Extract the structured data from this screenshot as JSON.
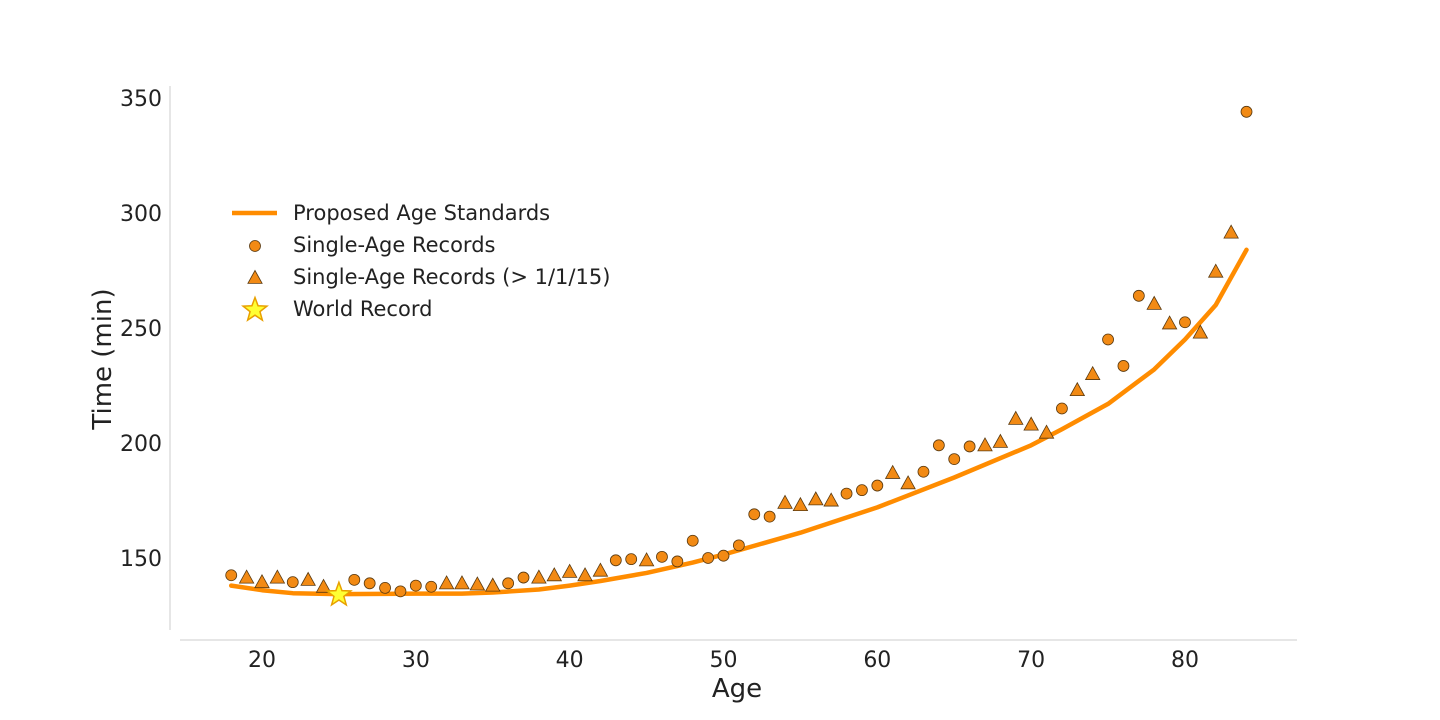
{
  "chart_data": {
    "type": "scatter",
    "title": "",
    "xlabel": "Age",
    "ylabel": "Time (min)",
    "xlim": [
      15,
      88
    ],
    "ylim": [
      120,
      355
    ],
    "xticks": [
      20,
      30,
      40,
      50,
      60,
      70,
      80
    ],
    "yticks": [
      150,
      200,
      250,
      300,
      350
    ],
    "grid": false,
    "legend_position": "upper-left",
    "colors": {
      "series": "#ff8c00",
      "marker_fill": "#f28a14",
      "marker_edge": "#5a3a10",
      "star_fill": "#ffff33",
      "star_edge": "#e8a000",
      "axis": "#cccccc",
      "text": "#222222"
    },
    "legend": [
      {
        "label": "Proposed Age Standards",
        "marker": "line"
      },
      {
        "label": "Single-Age Records",
        "marker": "circle"
      },
      {
        "label": "Single-Age Records (> 1/1/15)",
        "marker": "triangle"
      },
      {
        "label": "World Record",
        "marker": "star"
      }
    ],
    "series": [
      {
        "name": "Proposed Age Standards",
        "kind": "line",
        "points": [
          [
            18,
            138
          ],
          [
            20,
            136
          ],
          [
            22,
            134.7
          ],
          [
            25,
            134.3
          ],
          [
            28,
            134.4
          ],
          [
            30,
            134.5
          ],
          [
            33,
            134.5
          ],
          [
            35,
            135
          ],
          [
            38,
            136.3
          ],
          [
            40,
            138
          ],
          [
            42,
            140
          ],
          [
            45,
            143.5
          ],
          [
            48,
            148
          ],
          [
            50,
            151.5
          ],
          [
            55,
            161
          ],
          [
            60,
            172
          ],
          [
            65,
            185
          ],
          [
            70,
            199
          ],
          [
            72,
            206
          ],
          [
            75,
            217
          ],
          [
            78,
            232
          ],
          [
            80,
            245
          ],
          [
            82,
            260
          ],
          [
            84,
            284
          ]
        ]
      },
      {
        "name": "Single-Age Records",
        "kind": "circle",
        "points": [
          [
            18,
            142.5
          ],
          [
            22,
            139.5
          ],
          [
            26,
            140.5
          ],
          [
            27,
            139
          ],
          [
            28,
            137
          ],
          [
            29,
            135.5
          ],
          [
            30,
            138
          ],
          [
            31,
            137.5
          ],
          [
            36,
            139
          ],
          [
            37,
            141.5
          ],
          [
            43,
            149
          ],
          [
            44,
            149.5
          ],
          [
            46,
            150.5
          ],
          [
            47,
            148.5
          ],
          [
            48,
            157.5
          ],
          [
            49,
            150
          ],
          [
            50,
            151
          ],
          [
            51,
            155.5
          ],
          [
            52,
            169
          ],
          [
            53,
            168
          ],
          [
            58,
            178
          ],
          [
            59,
            179.5
          ],
          [
            60,
            181.5
          ],
          [
            63,
            187.5
          ],
          [
            64,
            199
          ],
          [
            65,
            193
          ],
          [
            66,
            198.5
          ],
          [
            72,
            215
          ],
          [
            75,
            245
          ],
          [
            76,
            233.5
          ],
          [
            77,
            264
          ],
          [
            80,
            252.5
          ],
          [
            84,
            344
          ]
        ]
      },
      {
        "name": "Single-Age Records (> 1/1/15)",
        "kind": "triangle",
        "points": [
          [
            19,
            141
          ],
          [
            20,
            139
          ],
          [
            21,
            141
          ],
          [
            23,
            140
          ],
          [
            24,
            137
          ],
          [
            32,
            138.5
          ],
          [
            33,
            138.5
          ],
          [
            34,
            138
          ],
          [
            35,
            137.5
          ],
          [
            38,
            141
          ],
          [
            39,
            142
          ],
          [
            40,
            143.5
          ],
          [
            41,
            142
          ],
          [
            42,
            144
          ],
          [
            45,
            148.5
          ],
          [
            54,
            173.5
          ],
          [
            55,
            172.5
          ],
          [
            56,
            175
          ],
          [
            57,
            174.5
          ],
          [
            61,
            186.5
          ],
          [
            62,
            182
          ],
          [
            67,
            198.5
          ],
          [
            68,
            200
          ],
          [
            69,
            210
          ],
          [
            70,
            207.5
          ],
          [
            71,
            204
          ],
          [
            73,
            222.5
          ],
          [
            74,
            229.5
          ],
          [
            78,
            260
          ],
          [
            79,
            251.5
          ],
          [
            81,
            247.5
          ],
          [
            82,
            274
          ],
          [
            83,
            291
          ]
        ]
      },
      {
        "name": "World Record",
        "kind": "star",
        "points": [
          [
            25,
            134
          ]
        ]
      }
    ]
  }
}
